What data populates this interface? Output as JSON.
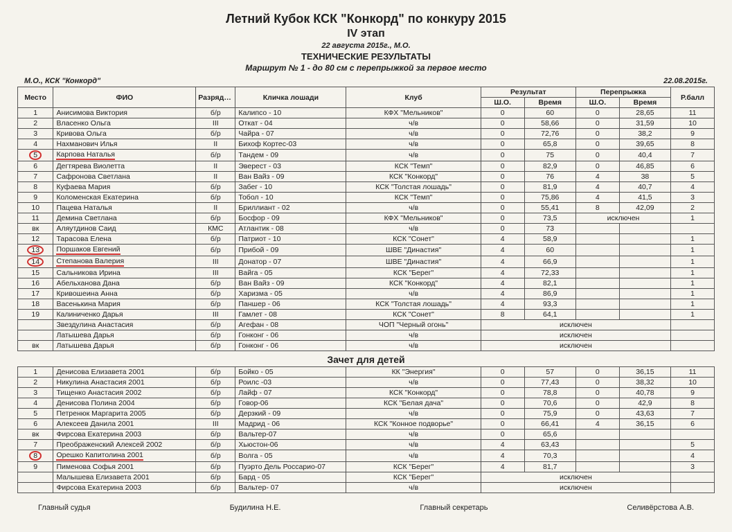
{
  "header": {
    "title1": "Летний Кубок КСК \"Конкорд\" по конкуру 2015",
    "title2": "IV этап",
    "date_loc": "22 августа 2015г., М.О.",
    "section": "ТЕХНИЧЕСКИЕ РЕЗУЛЬТАТЫ",
    "route": "Маршрут № 1 - до 80 см с перепрыжкой за первое место"
  },
  "meta": {
    "left": "М.О., КСК \"Конкорд\"",
    "right": "22.08.2015г."
  },
  "columns": {
    "place": "Место",
    "name": "ФИО",
    "rank": "Разряд/ Звание",
    "horse": "Кличка лошади",
    "club": "Клуб",
    "result": "Результат",
    "jumpoff": "Перепрыжка",
    "sho": "Ш.О.",
    "time": "Время",
    "score": "Р.балл"
  },
  "rows_main": [
    {
      "p": "1",
      "n": "Анисимова Виктория",
      "r": "б/р",
      "h": "Калипсо - 10",
      "c": "КФХ \"Мельников\"",
      "s": "0",
      "t": "60",
      "s2": "0",
      "t2": "28,65",
      "sc": "11"
    },
    {
      "p": "2",
      "n": "Власенко Ольга",
      "r": "III",
      "h": "Откат - 04",
      "c": "ч/в",
      "s": "0",
      "t": "58,66",
      "s2": "0",
      "t2": "31,59",
      "sc": "10"
    },
    {
      "p": "3",
      "n": "Кривова Ольга",
      "r": "б/р",
      "h": "Чайра - 07",
      "c": "ч/в",
      "s": "0",
      "t": "72,76",
      "s2": "0",
      "t2": "38,2",
      "sc": "9"
    },
    {
      "p": "4",
      "n": "Нахманович Илья",
      "r": "II",
      "h": "Бихоф Кортес-03",
      "c": "ч/в",
      "s": "0",
      "t": "65,8",
      "s2": "0",
      "t2": "39,65",
      "sc": "8"
    },
    {
      "p": "5",
      "n": "Карпова Наталья",
      "r": "б/р",
      "h": "Тандем - 09",
      "c": "ч/в",
      "s": "0",
      "t": "75",
      "s2": "0",
      "t2": "40,4",
      "sc": "7",
      "hl": true
    },
    {
      "p": "6",
      "n": "Дегтярева Виолетта",
      "r": "II",
      "h": "Эверест - 03",
      "c": "КСК \"Темп\"",
      "s": "0",
      "t": "82,9",
      "s2": "0",
      "t2": "46,85",
      "sc": "6"
    },
    {
      "p": "7",
      "n": "Сафронова Светлана",
      "r": "II",
      "h": "Ван Вайз - 09",
      "c": "КСК \"Конкорд\"",
      "s": "0",
      "t": "76",
      "s2": "4",
      "t2": "38",
      "sc": "5"
    },
    {
      "p": "8",
      "n": "Куфаева Мария",
      "r": "б/р",
      "h": "Забег - 10",
      "c": "КСК \"Толстая лошадь\"",
      "s": "0",
      "t": "81,9",
      "s2": "4",
      "t2": "40,7",
      "sc": "4"
    },
    {
      "p": "9",
      "n": "Коломенская Екатерина",
      "r": "б/р",
      "h": "Тобол - 10",
      "c": "КСК \"Темп\"",
      "s": "0",
      "t": "75,86",
      "s2": "4",
      "t2": "41,5",
      "sc": "3"
    },
    {
      "p": "10",
      "n": "Пацева Наталья",
      "r": "II",
      "h": "Бриллиант - 02",
      "c": "ч/в",
      "s": "0",
      "t": "55,41",
      "s2": "8",
      "t2": "42,09",
      "sc": "2"
    },
    {
      "p": "11",
      "n": "Демина Светлана",
      "r": "б/р",
      "h": "Босфор - 09",
      "c": "КФХ \"Мельников\"",
      "s": "0",
      "t": "73,5",
      "excl": "исключен",
      "sc": "1"
    },
    {
      "p": "вк",
      "n": "Аляутдинов Саид",
      "r": "КМС",
      "h": "Атлантик - 08",
      "c": "ч/в",
      "s": "0",
      "t": "73",
      "s2": "",
      "t2": "",
      "sc": ""
    },
    {
      "p": "12",
      "n": "Тарасова Елена",
      "r": "б/р",
      "h": "Патриот - 10",
      "c": "КСК \"Сонет\"",
      "s": "4",
      "t": "58,9",
      "s2": "",
      "t2": "",
      "sc": "1"
    },
    {
      "p": "13",
      "n": "Поршаков Евгений",
      "r": "б/р",
      "h": "Прибой - 09",
      "c": "ШВЕ \"Династия\"",
      "s": "4",
      "t": "60",
      "s2": "",
      "t2": "",
      "sc": "1",
      "hl": true
    },
    {
      "p": "14",
      "n": "Степанова Валерия",
      "r": "III",
      "h": "Донатор - 07",
      "c": "ШВЕ \"Династия\"",
      "s": "4",
      "t": "66,9",
      "s2": "",
      "t2": "",
      "sc": "1",
      "hl": true
    },
    {
      "p": "15",
      "n": "Сальникова Ирина",
      "r": "III",
      "h": "Вайга - 05",
      "c": "КСК \"Берег\"",
      "s": "4",
      "t": "72,33",
      "s2": "",
      "t2": "",
      "sc": "1"
    },
    {
      "p": "16",
      "n": "Абельханова Дана",
      "r": "б/р",
      "h": "Ван Вайз - 09",
      "c": "КСК \"Конкорд\"",
      "s": "4",
      "t": "82,1",
      "s2": "",
      "t2": "",
      "sc": "1"
    },
    {
      "p": "17",
      "n": "Кривошеина Анна",
      "r": "б/р",
      "h": "Харизма - 05",
      "c": "ч/в",
      "s": "4",
      "t": "86,9",
      "s2": "",
      "t2": "",
      "sc": "1"
    },
    {
      "p": "18",
      "n": "Васенькина Мария",
      "r": "б/р",
      "h": "Паншер - 06",
      "c": "КСК \"Толстая лошадь\"",
      "s": "4",
      "t": "93,3",
      "s2": "",
      "t2": "",
      "sc": "1"
    },
    {
      "p": "19",
      "n": "Калиниченко Дарья",
      "r": "III",
      "h": "Гамлет - 08",
      "c": "КСК \"Сонет\"",
      "s": "8",
      "t": "64,1",
      "s2": "",
      "t2": "",
      "sc": "1"
    },
    {
      "p": "",
      "n": "Звездулина Анастасия",
      "r": "б/р",
      "h": "Агефан - 08",
      "c": "ЧОП \"Черный огонь\"",
      "excl_full": "исключен"
    },
    {
      "p": "",
      "n": "Латышева Дарья",
      "r": "б/р",
      "h": "Гонконг - 06",
      "c": "ч/в",
      "excl_full": "исключен"
    },
    {
      "p": "вк",
      "n": "Латышева Дарья",
      "r": "б/р",
      "h": "Гонконг - 06",
      "c": "ч/в",
      "excl_full": "исключен"
    }
  ],
  "kids_title": "Зачет для детей",
  "rows_kids": [
    {
      "p": "1",
      "n": "Денисова Елизавета 2001",
      "r": "б/р",
      "h": "Бойко - 05",
      "c": "КК \"Энергия\"",
      "s": "0",
      "t": "57",
      "s2": "0",
      "t2": "36,15",
      "sc": "11"
    },
    {
      "p": "2",
      "n": "Никулина Анастасия 2001",
      "r": "б/р",
      "h": "Роилс -03",
      "c": "ч/в",
      "s": "0",
      "t": "77,43",
      "s2": "0",
      "t2": "38,32",
      "sc": "10"
    },
    {
      "p": "3",
      "n": "Тищенко Анастасия 2002",
      "r": "б/р",
      "h": "Лайф - 07",
      "c": "КСК \"Конкорд\"",
      "s": "0",
      "t": "78,8",
      "s2": "0",
      "t2": "40,78",
      "sc": "9"
    },
    {
      "p": "4",
      "n": "Денисова Полина 2004",
      "r": "б/р",
      "h": "Говор-06",
      "c": "КСК \"Белая дача\"",
      "s": "0",
      "t": "70,6",
      "s2": "0",
      "t2": "42,9",
      "sc": "8"
    },
    {
      "p": "5",
      "n": "Петренюк Маргарита 2005",
      "r": "б/р",
      "h": "Дерзкий - 09",
      "c": "ч/в",
      "s": "0",
      "t": "75,9",
      "s2": "0",
      "t2": "43,63",
      "sc": "7"
    },
    {
      "p": "6",
      "n": "Алексеев Данила 2001",
      "r": "III",
      "h": "Мадрид - 06",
      "c": "КСК \"Конное подворье\"",
      "s": "0",
      "t": "66,41",
      "s2": "4",
      "t2": "36,15",
      "sc": "6"
    },
    {
      "p": "вк",
      "n": "Фирсова Екатерина 2003",
      "r": "б/р",
      "h": "Вальтер-07",
      "c": "ч/в",
      "s": "0",
      "t": "65,6",
      "s2": "",
      "t2": "",
      "sc": ""
    },
    {
      "p": "7",
      "n": "Преображенский Алексей 2002",
      "r": "б/р",
      "h": "Хьюстон-06",
      "c": "ч/в",
      "s": "4",
      "t": "63,43",
      "s2": "",
      "t2": "",
      "sc": "5"
    },
    {
      "p": "8",
      "n": "Орешко Капитолина 2001",
      "r": "б/р",
      "h": "Волга - 05",
      "c": "ч/в",
      "s": "4",
      "t": "70,3",
      "s2": "",
      "t2": "",
      "sc": "4",
      "hl": true
    },
    {
      "p": "9",
      "n": "Пименова Софья 2001",
      "r": "б/р",
      "h": "Пуэрто Дель Россарио-07",
      "c": "КСК \"Берег\"",
      "s": "4",
      "t": "81,7",
      "s2": "",
      "t2": "",
      "sc": "3"
    },
    {
      "p": "",
      "n": "Малышева Елизавета 2001",
      "r": "б/р",
      "h": "Бард - 05",
      "c": "КСК \"Берег\"",
      "excl_full": "исключен"
    },
    {
      "p": "",
      "n": "Фирсова Екатерина 2003",
      "r": "б/р",
      "h": "Вальтер- 07",
      "c": "ч/в",
      "excl_full": "исключен"
    }
  ],
  "footer": {
    "judge_lbl": "Главный судья",
    "judge": "Будилина Н.Е.",
    "secr_lbl": "Главный секретарь",
    "secr": "Селивёрстова А.В."
  }
}
